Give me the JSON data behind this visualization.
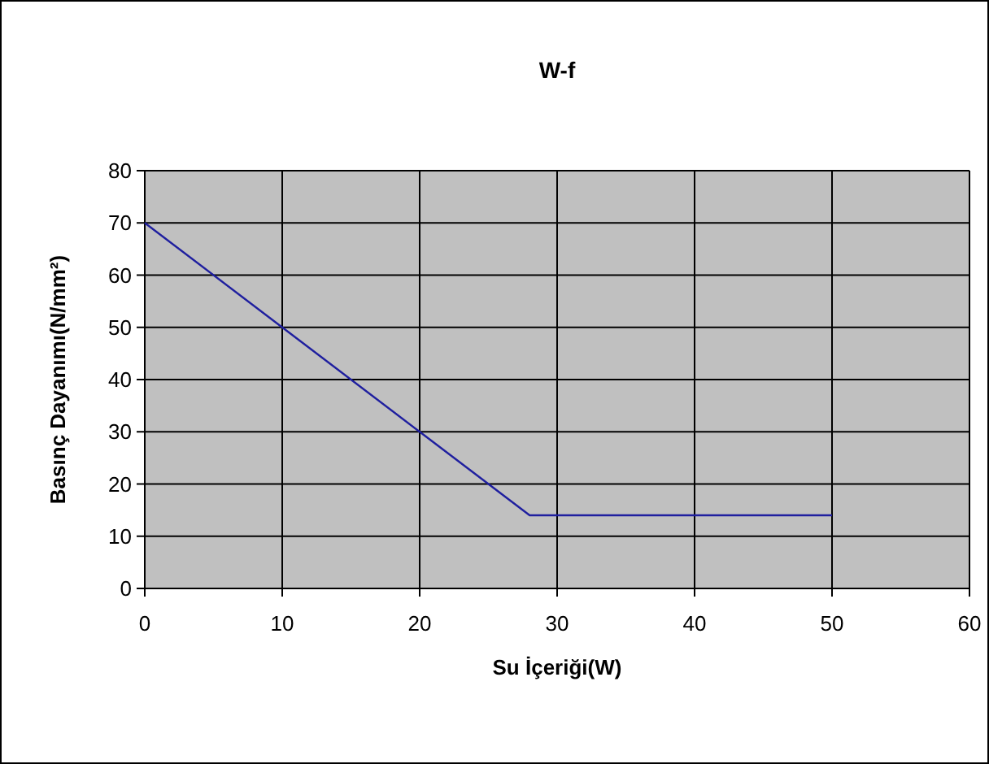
{
  "chart_data": {
    "type": "line",
    "title": "W-f",
    "xlabel": "Su İçeriği(W)",
    "ylabel": "Basınç Dayanımı(N/mm²)",
    "x": [
      0,
      10,
      20,
      28,
      50
    ],
    "series": [
      {
        "color": "#1f1f9f",
        "values": [
          70,
          50,
          30,
          14,
          14
        ]
      }
    ],
    "xlim": [
      0,
      60
    ],
    "xticks": [
      0,
      10,
      20,
      30,
      40,
      50,
      60
    ],
    "ylim": [
      0,
      80
    ],
    "yticks": [
      0,
      10,
      20,
      30,
      40,
      50,
      60,
      70,
      80
    ],
    "grid": true,
    "marker": "none",
    "line_style": "solid"
  }
}
